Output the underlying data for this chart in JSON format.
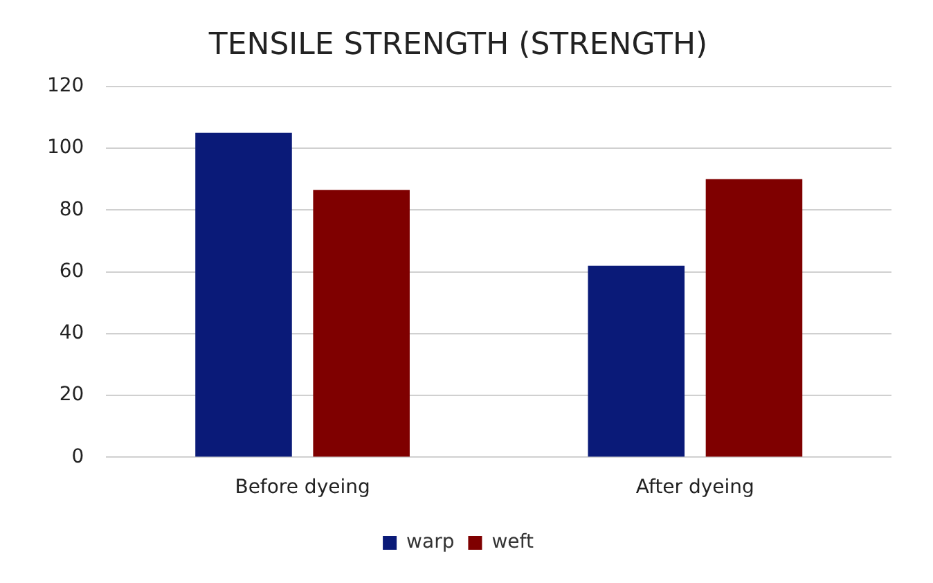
{
  "chart_data": {
    "type": "bar",
    "title": "TENSILE STRENGTH (STRENGTH)",
    "categories": [
      "Before dyeing",
      "After dyeing"
    ],
    "series": [
      {
        "name": "warp",
        "color": "#0a1a78",
        "values": [
          105,
          62
        ]
      },
      {
        "name": "weft",
        "color": "#7f0000",
        "values": [
          86.5,
          90
        ]
      }
    ],
    "ylim": [
      0,
      120
    ],
    "yticks": [
      0,
      20,
      40,
      60,
      80,
      100,
      120
    ],
    "grid": "y",
    "legend": "bottom"
  }
}
